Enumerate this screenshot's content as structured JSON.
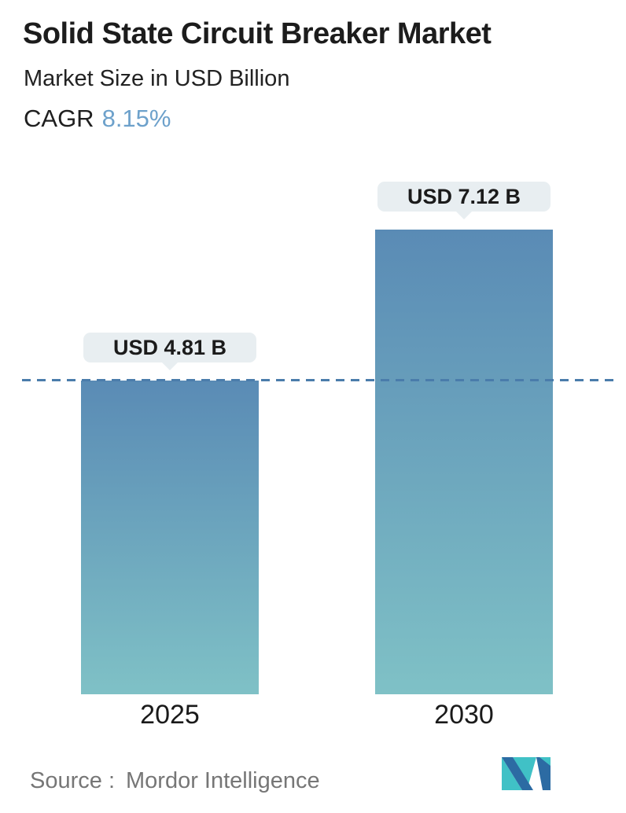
{
  "header": {
    "title": "Solid State Circuit Breaker Market",
    "subtitle": "Market Size in USD Billion",
    "cagr_label": "CAGR",
    "cagr_value": "8.15%"
  },
  "chart_data": {
    "type": "bar",
    "title": "Solid State Circuit Breaker Market",
    "subtitle": "Market Size in USD Billion",
    "categories": [
      "2025",
      "2030"
    ],
    "values": [
      4.81,
      7.12
    ],
    "value_labels": [
      "USD 4.81 B",
      "USD 7.12 B"
    ],
    "unit": "USD Billion",
    "cagr": "8.15%",
    "dashed_reference_line_at": 4.81,
    "grid": false,
    "legend": false
  },
  "footer": {
    "source_label": "Source :",
    "source_value": "Mordor Intelligence"
  },
  "icons": {
    "brand_logo": "mordor-intelligence-m-logo"
  },
  "colors": {
    "title_text": "#1c1c1c",
    "cagr_accent": "#6da1cb",
    "bar_gradient_top": "#5a8bb5",
    "bar_gradient_bottom": "#7fc1c6",
    "dashed_line": "#4a7cab",
    "tooltip_bg": "#e8eef1",
    "source_text": "#767676",
    "logo_blue": "#2c6ba3",
    "logo_teal": "#40c1c6"
  }
}
